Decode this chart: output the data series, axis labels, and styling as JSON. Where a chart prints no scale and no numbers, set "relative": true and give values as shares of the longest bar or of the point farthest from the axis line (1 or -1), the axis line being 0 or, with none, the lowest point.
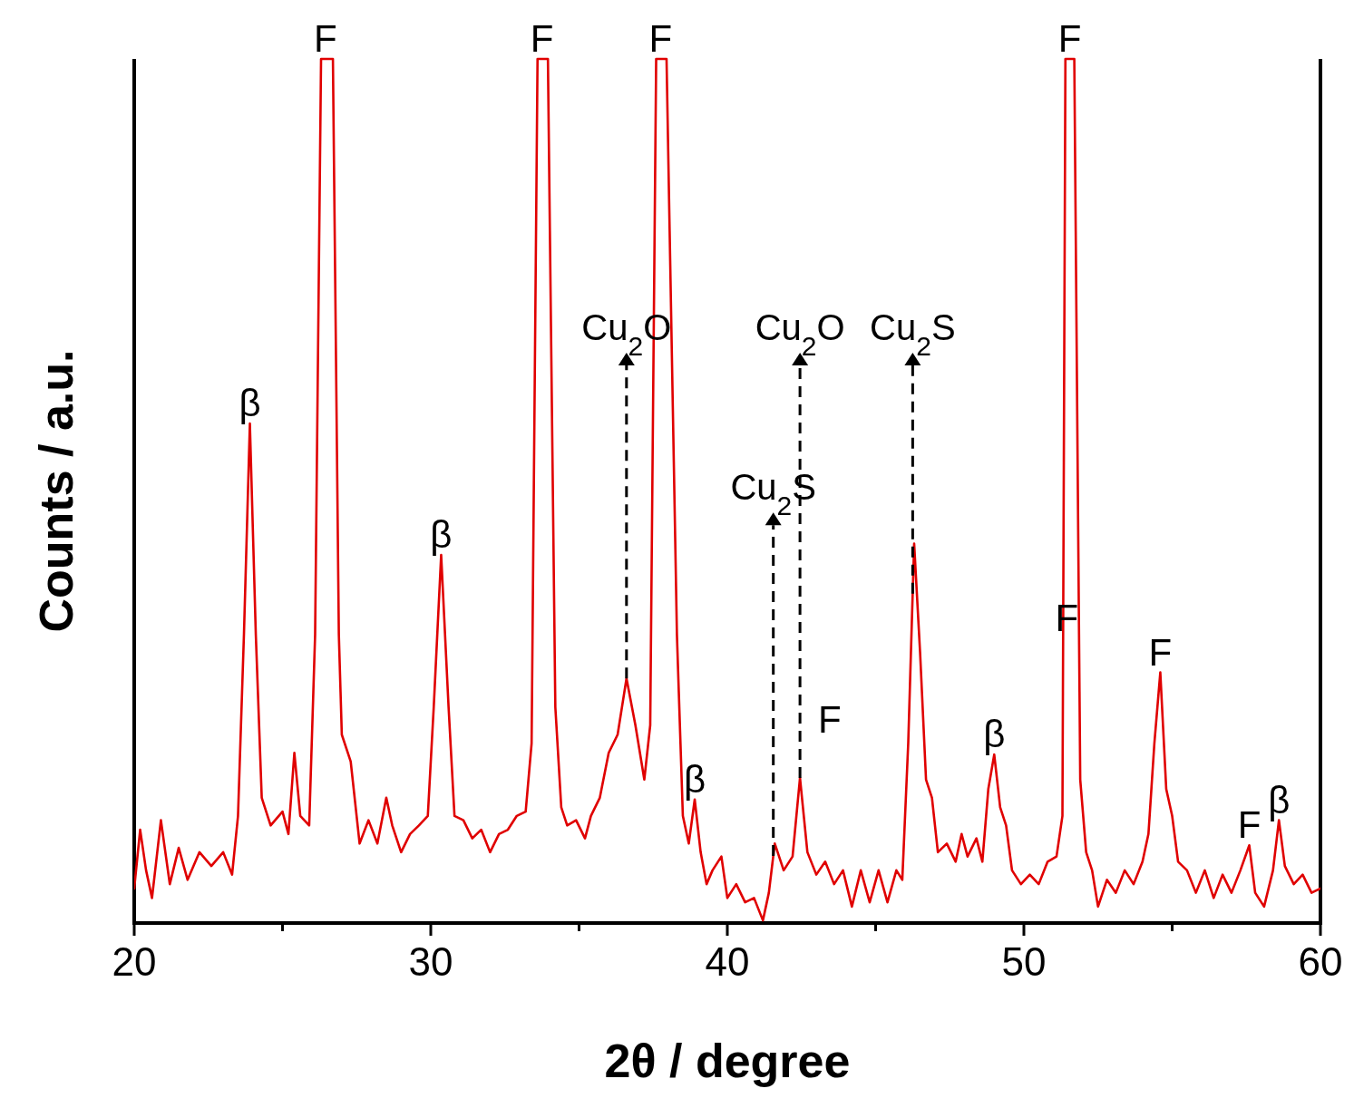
{
  "chart_data": {
    "type": "line",
    "relative": true,
    "xlabel": "2θ / degree",
    "ylabel": "Counts / a.u.",
    "xlim": [
      20,
      60
    ],
    "xticks": [
      20,
      {
        "value": 25,
        "label": null
      },
      30,
      {
        "value": 35,
        "label": null
      },
      40,
      {
        "value": 45,
        "label": null
      },
      50,
      {
        "value": 55,
        "label": null
      },
      60
    ],
    "grid": false,
    "marker": "none",
    "line_style": "solid",
    "series": [
      {
        "color": "#e00000",
        "x": [
          20.0,
          20.2,
          20.4,
          20.6,
          20.9,
          21.2,
          21.5,
          21.8,
          22.2,
          22.6,
          23.0,
          23.3,
          23.5,
          23.7,
          23.9,
          24.1,
          24.3,
          24.6,
          25.0,
          25.2,
          25.4,
          25.6,
          25.9,
          26.1,
          26.3,
          26.7,
          26.9,
          27.0,
          27.3,
          27.6,
          27.9,
          28.2,
          28.5,
          28.7,
          29.0,
          29.3,
          29.6,
          29.9,
          30.1,
          30.35,
          30.6,
          30.8,
          31.1,
          31.4,
          31.7,
          32.0,
          32.3,
          32.6,
          32.9,
          33.2,
          33.4,
          33.6,
          33.95,
          34.2,
          34.4,
          34.6,
          34.9,
          35.2,
          35.4,
          35.7,
          36.0,
          36.3,
          36.6,
          36.9,
          37.2,
          37.4,
          37.6,
          37.95,
          38.3,
          38.5,
          38.7,
          38.9,
          39.1,
          39.3,
          39.5,
          39.8,
          40.0,
          40.3,
          40.6,
          40.9,
          41.2,
          41.4,
          41.6,
          41.9,
          42.2,
          42.45,
          42.7,
          43.0,
          43.3,
          43.6,
          43.9,
          44.2,
          44.5,
          44.8,
          45.1,
          45.4,
          45.7,
          45.9,
          46.1,
          46.3,
          46.5,
          46.7,
          46.9,
          47.1,
          47.4,
          47.7,
          47.9,
          48.1,
          48.4,
          48.6,
          48.8,
          49.0,
          49.2,
          49.4,
          49.6,
          49.9,
          50.2,
          50.5,
          50.8,
          51.1,
          51.3,
          51.4,
          51.7,
          51.9,
          52.1,
          52.3,
          52.5,
          52.8,
          53.1,
          53.4,
          53.7,
          54.0,
          54.2,
          54.4,
          54.6,
          54.8,
          55.0,
          55.2,
          55.5,
          55.8,
          56.1,
          56.4,
          56.7,
          57.0,
          57.3,
          57.6,
          57.8,
          58.1,
          58.4,
          58.6,
          58.8,
          59.1,
          59.4,
          59.7,
          60.0
        ],
        "values": [
          0.04,
          0.108,
          0.061,
          0.029,
          0.119,
          0.045,
          0.087,
          0.05,
          0.082,
          0.066,
          0.082,
          0.056,
          0.124,
          0.334,
          0.578,
          0.334,
          0.145,
          0.113,
          0.129,
          0.103,
          0.197,
          0.124,
          0.113,
          0.334,
          1,
          1,
          0.334,
          0.218,
          0.187,
          0.092,
          0.119,
          0.092,
          0.145,
          0.113,
          0.082,
          0.103,
          0.113,
          0.124,
          0.25,
          0.426,
          0.25,
          0.124,
          0.119,
          0.098,
          0.108,
          0.082,
          0.103,
          0.108,
          0.124,
          0.129,
          0.208,
          1,
          1,
          0.25,
          0.134,
          0.113,
          0.119,
          0.098,
          0.124,
          0.145,
          0.197,
          0.218,
          0.283,
          0.229,
          0.166,
          0.229,
          1,
          1,
          0.334,
          0.124,
          0.092,
          0.143,
          0.082,
          0.045,
          0.061,
          0.077,
          0.029,
          0.045,
          0.024,
          0.029,
          0.003,
          0.035,
          0.092,
          0.061,
          0.077,
          0.168,
          0.082,
          0.056,
          0.071,
          0.045,
          0.061,
          0.019,
          0.061,
          0.024,
          0.061,
          0.024,
          0.061,
          0.05,
          0.208,
          0.439,
          0.313,
          0.166,
          0.145,
          0.082,
          0.092,
          0.071,
          0.103,
          0.077,
          0.098,
          0.071,
          0.155,
          0.195,
          0.134,
          0.113,
          0.061,
          0.045,
          0.056,
          0.045,
          0.071,
          0.077,
          0.124,
          1,
          1,
          0.166,
          0.082,
          0.061,
          0.019,
          0.05,
          0.035,
          0.061,
          0.045,
          0.071,
          0.103,
          0.208,
          0.29,
          0.155,
          0.124,
          0.071,
          0.061,
          0.035,
          0.061,
          0.029,
          0.056,
          0.035,
          0.061,
          0.09,
          0.035,
          0.019,
          0.061,
          0.119,
          0.066,
          0.045,
          0.056,
          0.035,
          0.04
        ]
      }
    ],
    "annotations": [
      {
        "text": "β",
        "x": 23.9,
        "y": 0.578
      },
      {
        "text": "F",
        "x": 26.45,
        "y": 1
      },
      {
        "text": "β",
        "x": 30.35,
        "y": 0.426
      },
      {
        "text": "F",
        "x": 33.75,
        "y": 1
      },
      {
        "text": "Cu$_{2}$O",
        "x": 36.6
      },
      {
        "text": "F",
        "x": 37.75,
        "y": 1
      },
      {
        "text": "β",
        "x": 38.9,
        "y": 0.143
      },
      {
        "text": "Cu$_{2}$S",
        "x": 41.55
      },
      {
        "text": "Cu$_{2}$O",
        "x": 42.45
      },
      {
        "text": "F",
        "x": 42.45,
        "y": 0.168
      },
      {
        "text": "Cu$_{2}$S",
        "x": 46.25
      },
      {
        "text": "β",
        "x": 49.0,
        "y": 0.195
      },
      {
        "text": "F",
        "x": 51.55,
        "y": 1
      },
      {
        "text": "F",
        "x": 51.45,
        "y": 0.33
      },
      {
        "text": "F",
        "x": 54.6,
        "y": 0.29
      },
      {
        "text": "F",
        "x": 57.6,
        "y": 0.09
      },
      {
        "text": "β",
        "x": 58.6,
        "y": 0.119
      }
    ]
  }
}
